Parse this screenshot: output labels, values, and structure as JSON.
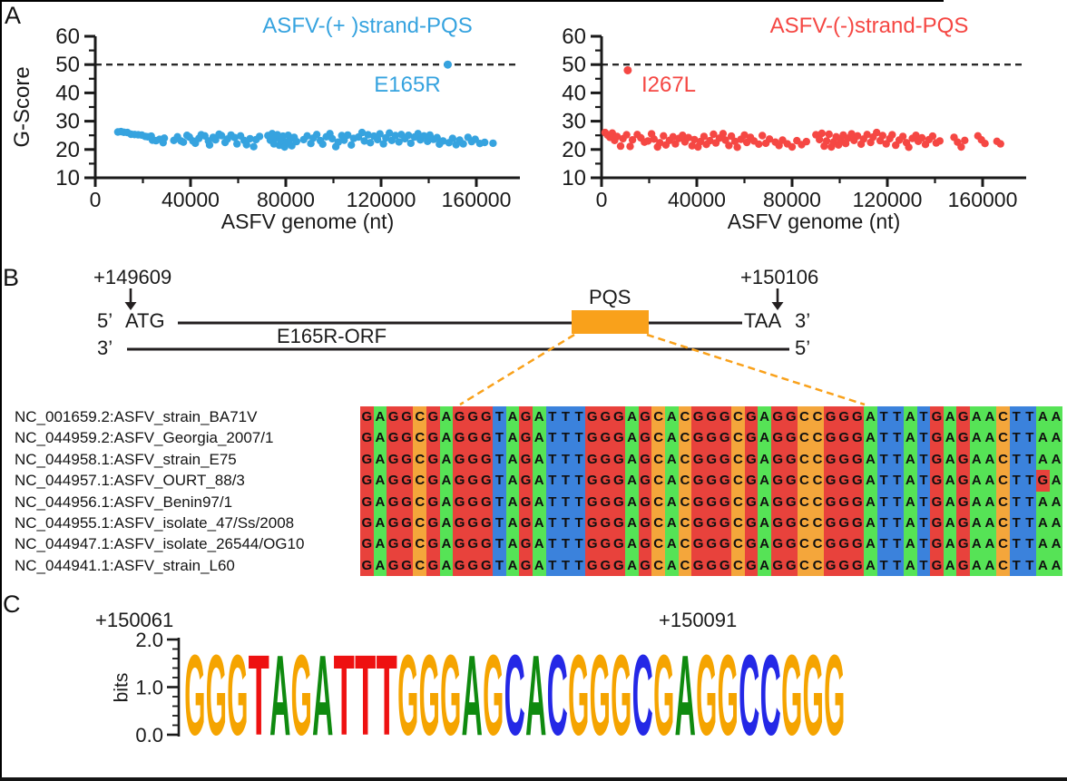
{
  "panels": {
    "a": "A",
    "b": "B",
    "c": "C"
  },
  "chart_data": [
    {
      "type": "scatter",
      "title": "ASFV-(+ )strand-PQS",
      "title_color": "#36a3df",
      "point_color": "#36a3df",
      "xlabel": "ASFV genome (nt)",
      "ylabel": "G-Score",
      "xlim": [
        0,
        178000
      ],
      "ylim": [
        10,
        60
      ],
      "xticks": [
        0,
        40000,
        80000,
        120000,
        160000
      ],
      "yticks": [
        10,
        20,
        30,
        40,
        50,
        60
      ],
      "threshold_y": 50,
      "threshold_style": "dashed",
      "annotation": {
        "label": "E165R",
        "x": 148000,
        "y": 50
      },
      "points": [
        [
          9500,
          26.2
        ],
        [
          10800,
          26.3
        ],
        [
          12000,
          26.1
        ],
        [
          13500,
          26.0
        ],
        [
          15000,
          25.4
        ],
        [
          16500,
          25.3
        ],
        [
          18000,
          25.2
        ],
        [
          19500,
          25.1
        ],
        [
          21000,
          24.6
        ],
        [
          22000,
          24.5
        ],
        [
          23500,
          24.7
        ],
        [
          24000,
          23.3
        ],
        [
          25500,
          23.1
        ],
        [
          27000,
          23.6
        ],
        [
          28500,
          22.4
        ],
        [
          29000,
          24.0
        ],
        [
          33000,
          23.2
        ],
        [
          34500,
          24.5
        ],
        [
          36000,
          23.0
        ],
        [
          37000,
          22.6
        ],
        [
          38500,
          25.0
        ],
        [
          39500,
          24.4
        ],
        [
          41000,
          23.0
        ],
        [
          42000,
          22.2
        ],
        [
          43500,
          23.9
        ],
        [
          44500,
          25.2
        ],
        [
          46000,
          24.8
        ],
        [
          47500,
          23.0
        ],
        [
          48000,
          21.6
        ],
        [
          49500,
          24.3
        ],
        [
          50500,
          23.4
        ],
        [
          52000,
          25.4
        ],
        [
          53000,
          24.9
        ],
        [
          54500,
          22.5
        ],
        [
          55500,
          23.7
        ],
        [
          57000,
          25.1
        ],
        [
          58500,
          24.2
        ],
        [
          59500,
          22.0
        ],
        [
          61000,
          24.8
        ],
        [
          62500,
          23.2
        ],
        [
          63500,
          21.7
        ],
        [
          65000,
          23.8
        ],
        [
          66500,
          21.0
        ],
        [
          67500,
          23.5
        ],
        [
          69000,
          24.6
        ],
        [
          72500,
          24.9
        ],
        [
          73500,
          23.3
        ],
        [
          74300,
          25.6
        ],
        [
          75000,
          22.0
        ],
        [
          75800,
          24.1
        ],
        [
          76500,
          25.2
        ],
        [
          77300,
          21.5
        ],
        [
          78000,
          23.0
        ],
        [
          78800,
          24.7
        ],
        [
          79500,
          20.9
        ],
        [
          80300,
          22.5
        ],
        [
          81000,
          25.0
        ],
        [
          81800,
          23.7
        ],
        [
          82500,
          21.3
        ],
        [
          83500,
          24.3
        ],
        [
          84500,
          22.8
        ],
        [
          87500,
          23.5
        ],
        [
          89000,
          24.8
        ],
        [
          90500,
          22.1
        ],
        [
          91500,
          24.0
        ],
        [
          93000,
          25.3
        ],
        [
          94500,
          23.1
        ],
        [
          95500,
          21.9
        ],
        [
          97000,
          24.5
        ],
        [
          98500,
          25.6
        ],
        [
          99500,
          23.8
        ],
        [
          101000,
          21.0
        ],
        [
          102000,
          22.6
        ],
        [
          103500,
          24.9
        ],
        [
          104500,
          23.3
        ],
        [
          106000,
          25.1
        ],
        [
          107500,
          21.6
        ],
        [
          108500,
          23.9
        ],
        [
          110500,
          24.4
        ],
        [
          112000,
          26.0
        ],
        [
          113000,
          23.0
        ],
        [
          114500,
          25.2
        ],
        [
          115500,
          22.4
        ],
        [
          117000,
          24.7
        ],
        [
          118500,
          23.5
        ],
        [
          119500,
          25.5
        ],
        [
          121000,
          22.0
        ],
        [
          122000,
          24.1
        ],
        [
          123500,
          25.8
        ],
        [
          124500,
          23.2
        ],
        [
          126000,
          24.9
        ],
        [
          127500,
          22.7
        ],
        [
          128500,
          25.3
        ],
        [
          130000,
          23.8
        ],
        [
          131500,
          25.0
        ],
        [
          132500,
          22.2
        ],
        [
          134000,
          24.4
        ],
        [
          135500,
          25.6
        ],
        [
          136500,
          23.4
        ],
        [
          138000,
          24.8
        ],
        [
          139500,
          22.9
        ],
        [
          140500,
          25.1
        ],
        [
          142000,
          23.6
        ],
        [
          143500,
          24.2
        ],
        [
          144500,
          21.9
        ],
        [
          146000,
          23.0
        ],
        [
          148500,
          22.4
        ],
        [
          150000,
          23.9
        ],
        [
          151500,
          21.7
        ],
        [
          153000,
          23.3
        ],
        [
          154500,
          22.0
        ],
        [
          156500,
          24.3
        ],
        [
          158000,
          22.8
        ],
        [
          159500,
          23.6
        ],
        [
          161500,
          22.1
        ],
        [
          163500,
          22.5
        ],
        [
          167000,
          22.2
        ]
      ]
    },
    {
      "type": "scatter",
      "title": "ASFV-(-)strand-PQS",
      "title_color": "#f54743",
      "point_color": "#f54743",
      "xlabel": "ASFV genome (nt)",
      "ylabel": "",
      "xlim": [
        0,
        178000
      ],
      "ylim": [
        10,
        60
      ],
      "xticks": [
        0,
        40000,
        80000,
        120000,
        160000
      ],
      "yticks": [
        10,
        20,
        30,
        40,
        50,
        60
      ],
      "threshold_y": 50,
      "threshold_style": "dashed",
      "annotation": {
        "label": "I267L",
        "x": 11000,
        "y": 48
      },
      "points": [
        [
          1500,
          26.0
        ],
        [
          2500,
          25.1
        ],
        [
          3500,
          24.3
        ],
        [
          4500,
          25.8
        ],
        [
          5500,
          23.2
        ],
        [
          6500,
          24.6
        ],
        [
          8000,
          21.2
        ],
        [
          9000,
          23.8
        ],
        [
          10500,
          25.2
        ],
        [
          12000,
          21.1
        ],
        [
          13000,
          23.4
        ],
        [
          15000,
          25.3
        ],
        [
          16500,
          24.1
        ],
        [
          18000,
          22.6
        ],
        [
          19500,
          23.0
        ],
        [
          21000,
          25.5
        ],
        [
          22000,
          23.7
        ],
        [
          23500,
          20.9
        ],
        [
          24500,
          22.4
        ],
        [
          26000,
          24.8
        ],
        [
          27000,
          21.6
        ],
        [
          28500,
          23.2
        ],
        [
          30000,
          24.5
        ],
        [
          31000,
          22.0
        ],
        [
          32500,
          23.9
        ],
        [
          34000,
          25.0
        ],
        [
          35000,
          22.7
        ],
        [
          36500,
          24.2
        ],
        [
          38000,
          21.3
        ],
        [
          39000,
          23.5
        ],
        [
          40500,
          20.9
        ],
        [
          41500,
          22.8
        ],
        [
          43000,
          24.6
        ],
        [
          44000,
          21.8
        ],
        [
          45500,
          23.1
        ],
        [
          47000,
          25.4
        ],
        [
          48000,
          22.3
        ],
        [
          49500,
          24.0
        ],
        [
          51000,
          25.6
        ],
        [
          52000,
          23.3
        ],
        [
          53500,
          21.4
        ],
        [
          54500,
          24.7
        ],
        [
          56000,
          22.9
        ],
        [
          57000,
          20.8
        ],
        [
          58500,
          23.6
        ],
        [
          60000,
          25.1
        ],
        [
          61000,
          22.5
        ],
        [
          62500,
          24.3
        ],
        [
          64000,
          23.0
        ],
        [
          66000,
          21.9
        ],
        [
          67500,
          24.9
        ],
        [
          69000,
          22.2
        ],
        [
          70500,
          23.7
        ],
        [
          73000,
          22.6
        ],
        [
          74500,
          21.4
        ],
        [
          76000,
          23.3
        ],
        [
          78000,
          22.0
        ],
        [
          80000,
          20.9
        ],
        [
          82000,
          23.1
        ],
        [
          84000,
          21.7
        ],
        [
          86000,
          22.8
        ],
        [
          90000,
          25.2
        ],
        [
          91500,
          23.5
        ],
        [
          92500,
          25.7
        ],
        [
          93500,
          21.2
        ],
        [
          94500,
          23.0
        ],
        [
          95500,
          25.4
        ],
        [
          96500,
          20.9
        ],
        [
          97500,
          22.7
        ],
        [
          98500,
          24.5
        ],
        [
          99500,
          21.6
        ],
        [
          100500,
          23.4
        ],
        [
          101500,
          25.1
        ],
        [
          102500,
          22.1
        ],
        [
          103500,
          24.0
        ],
        [
          105000,
          25.5
        ],
        [
          106000,
          23.2
        ],
        [
          107500,
          24.8
        ],
        [
          109000,
          21.9
        ],
        [
          110000,
          23.7
        ],
        [
          111500,
          25.3
        ],
        [
          113000,
          22.5
        ],
        [
          114000,
          24.4
        ],
        [
          115500,
          26.0
        ],
        [
          117000,
          23.1
        ],
        [
          118000,
          24.9
        ],
        [
          119500,
          22.0
        ],
        [
          121000,
          23.8
        ],
        [
          122000,
          25.2
        ],
        [
          123500,
          21.5
        ],
        [
          125000,
          23.3
        ],
        [
          126500,
          24.6
        ],
        [
          128000,
          22.4
        ],
        [
          129000,
          20.8
        ],
        [
          130500,
          23.9
        ],
        [
          132000,
          25.0
        ],
        [
          133000,
          22.9
        ],
        [
          134500,
          24.1
        ],
        [
          136000,
          21.8
        ],
        [
          137500,
          23.5
        ],
        [
          139000,
          24.7
        ],
        [
          140500,
          22.3
        ],
        [
          142000,
          23.0
        ],
        [
          148000,
          24.3
        ],
        [
          149500,
          22.6
        ],
        [
          151000,
          20.9
        ],
        [
          152500,
          23.2
        ],
        [
          158000,
          24.8
        ],
        [
          159500,
          23.4
        ],
        [
          161000,
          22.1
        ],
        [
          166000,
          22.9
        ],
        [
          167500,
          22.0
        ]
      ]
    },
    {
      "type": "sequence_logo",
      "sequence": "GGGTAGATTTGGGAGCACGGGCGAGGCCGGG",
      "height_bits": 1.75,
      "ylim": [
        0,
        2
      ],
      "ylabel": "bits",
      "yticks": [
        {
          "label": "2.0",
          "value": 2
        },
        {
          "label": "1.0",
          "value": 1
        },
        {
          "label": "0.0",
          "value": 0
        }
      ],
      "colors": {
        "G": "#f5a400",
        "A": "#0f8a0f",
        "C": "#2428e6",
        "T": "#ee1111"
      },
      "start_label": "+150061",
      "end_label": "+150091"
    }
  ],
  "panel_b": {
    "start_position": "+149609",
    "end_position": "+150106",
    "top_strand_5": "5’",
    "start_codon": "ATG",
    "orf_label": "E165R-ORF",
    "pqs_label": "PQS",
    "stop_codon": "TAA",
    "top_strand_3": "3’",
    "bottom_strand_3": "3’",
    "bottom_strand_5": "5’",
    "pqs_box_color": "#f9a11b",
    "alignment": {
      "colors": {
        "G": "#e8423c",
        "A": "#56e356",
        "C": "#f4a63b",
        "T": "#3b82dc"
      },
      "rows": [
        {
          "name": "NC_001659.2:ASFV_strain_BA71V",
          "seq": "GAGGCGAGGGTAGATTTGGGAGCACGGGCGAGGCCGGGATTATGAGAACTTAA"
        },
        {
          "name": "NC_044959.2:ASFV_Georgia_2007/1",
          "seq": "GAGGCGAGGGTAGATTTGGGAGCACGGGCGAGGCCGGGATTATGAGAACTTAA"
        },
        {
          "name": "NC_044958.1:ASFV_strain_E75",
          "seq": "GAGGCGAGGGTAGATTTGGGAGCACGGGCGAGGCCGGGATTATGAGAACTTAA"
        },
        {
          "name": "NC_044957.1:ASFV_OURT_88/3",
          "seq": "GAGGCGAGGGTAGATTTGGGAGCACGGGCGAGGCCGGGATTATGAGAACTTGA"
        },
        {
          "name": "NC_044956.1:ASFV_Benin97/1",
          "seq": "GAGGCGAGGGTAGATTTGGGAGCACGGGCGAGGCCGGGATTATGAGAACTTAA"
        },
        {
          "name": "NC_044955.1:ASFV_isolate_47/Ss/2008",
          "seq": "GAGGCGAGGGTAGATTTGGGAGCACGGGCGAGGCCGGGATTATGAGAACTTAA"
        },
        {
          "name": "NC_044947.1:ASFV_isolate_26544/OG10",
          "seq": "GAGGCGAGGGTAGATTTGGGAGCACGGGCGAGGCCGGGATTATGAGAACTTAA"
        },
        {
          "name": "NC_044941.1:ASFV_strain_L60",
          "seq": "GAGGCGAGGGTAGATTTGGGAGCACGGGCGAGGCCGGGATTATGAGAACTTAA"
        }
      ]
    }
  }
}
